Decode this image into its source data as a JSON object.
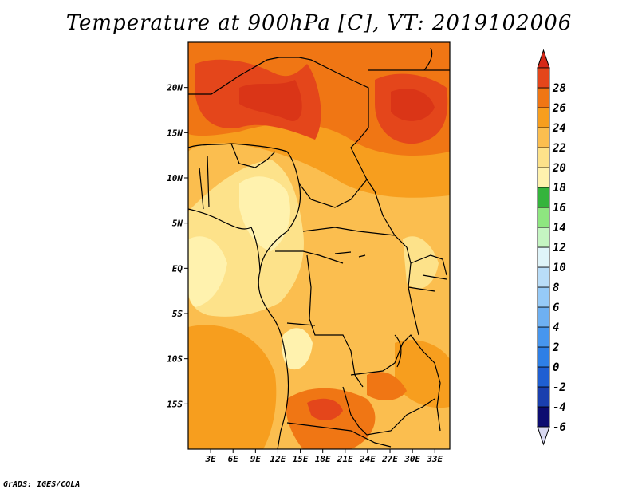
{
  "title": "Temperature at 900hPa [C], VT: 2019102006",
  "credit": "GrADS: IGES/COLA",
  "map": {
    "variable": "Temperature",
    "level": "900hPa",
    "units": "C",
    "valid_time": "2019102006",
    "lon_range": [
      0,
      35
    ],
    "lat_range": [
      -20,
      25
    ],
    "lat_ticks": [
      {
        "value": 20,
        "label": "20N"
      },
      {
        "value": 15,
        "label": "15N"
      },
      {
        "value": 10,
        "label": "10N"
      },
      {
        "value": 5,
        "label": "5N"
      },
      {
        "value": 0,
        "label": "EQ"
      },
      {
        "value": -5,
        "label": "5S"
      },
      {
        "value": -10,
        "label": "10S"
      },
      {
        "value": -15,
        "label": "15S"
      }
    ],
    "lon_ticks": [
      {
        "value": 3,
        "label": "3E"
      },
      {
        "value": 6,
        "label": "6E"
      },
      {
        "value": 9,
        "label": "9E"
      },
      {
        "value": 12,
        "label": "12E"
      },
      {
        "value": 15,
        "label": "15E"
      },
      {
        "value": 18,
        "label": "18E"
      },
      {
        "value": 21,
        "label": "21E"
      },
      {
        "value": 24,
        "label": "24E"
      },
      {
        "value": 27,
        "label": "27E"
      },
      {
        "value": 30,
        "label": "30E"
      },
      {
        "value": 33,
        "label": "33E"
      }
    ]
  },
  "colorbar": {
    "min_cap": "#1c1d78",
    "max_cap": "#d52817",
    "levels": [
      {
        "label": "-6",
        "color": "#0c0c70"
      },
      {
        "label": "-4",
        "color": "#1a3fae"
      },
      {
        "label": "-2",
        "color": "#1f5fd2"
      },
      {
        "label": "0",
        "color": "#2e7fe6"
      },
      {
        "label": "2",
        "color": "#4796ee"
      },
      {
        "label": "4",
        "color": "#6eb0f2"
      },
      {
        "label": "6",
        "color": "#96caf7"
      },
      {
        "label": "8",
        "color": "#b9ddf8"
      },
      {
        "label": "10",
        "color": "#dff4f9"
      },
      {
        "label": "12",
        "color": "#c5f5c2"
      },
      {
        "label": "14",
        "color": "#8ee680"
      },
      {
        "label": "16",
        "color": "#35b43c"
      },
      {
        "label": "18",
        "color": "#fff2ae"
      },
      {
        "label": "20",
        "color": "#fde28a"
      },
      {
        "label": "22",
        "color": "#fbbe4f"
      },
      {
        "label": "24",
        "color": "#f79e1e"
      },
      {
        "label": "26",
        "color": "#f07614"
      },
      {
        "label": "28",
        "color": "#e4461b"
      }
    ]
  }
}
